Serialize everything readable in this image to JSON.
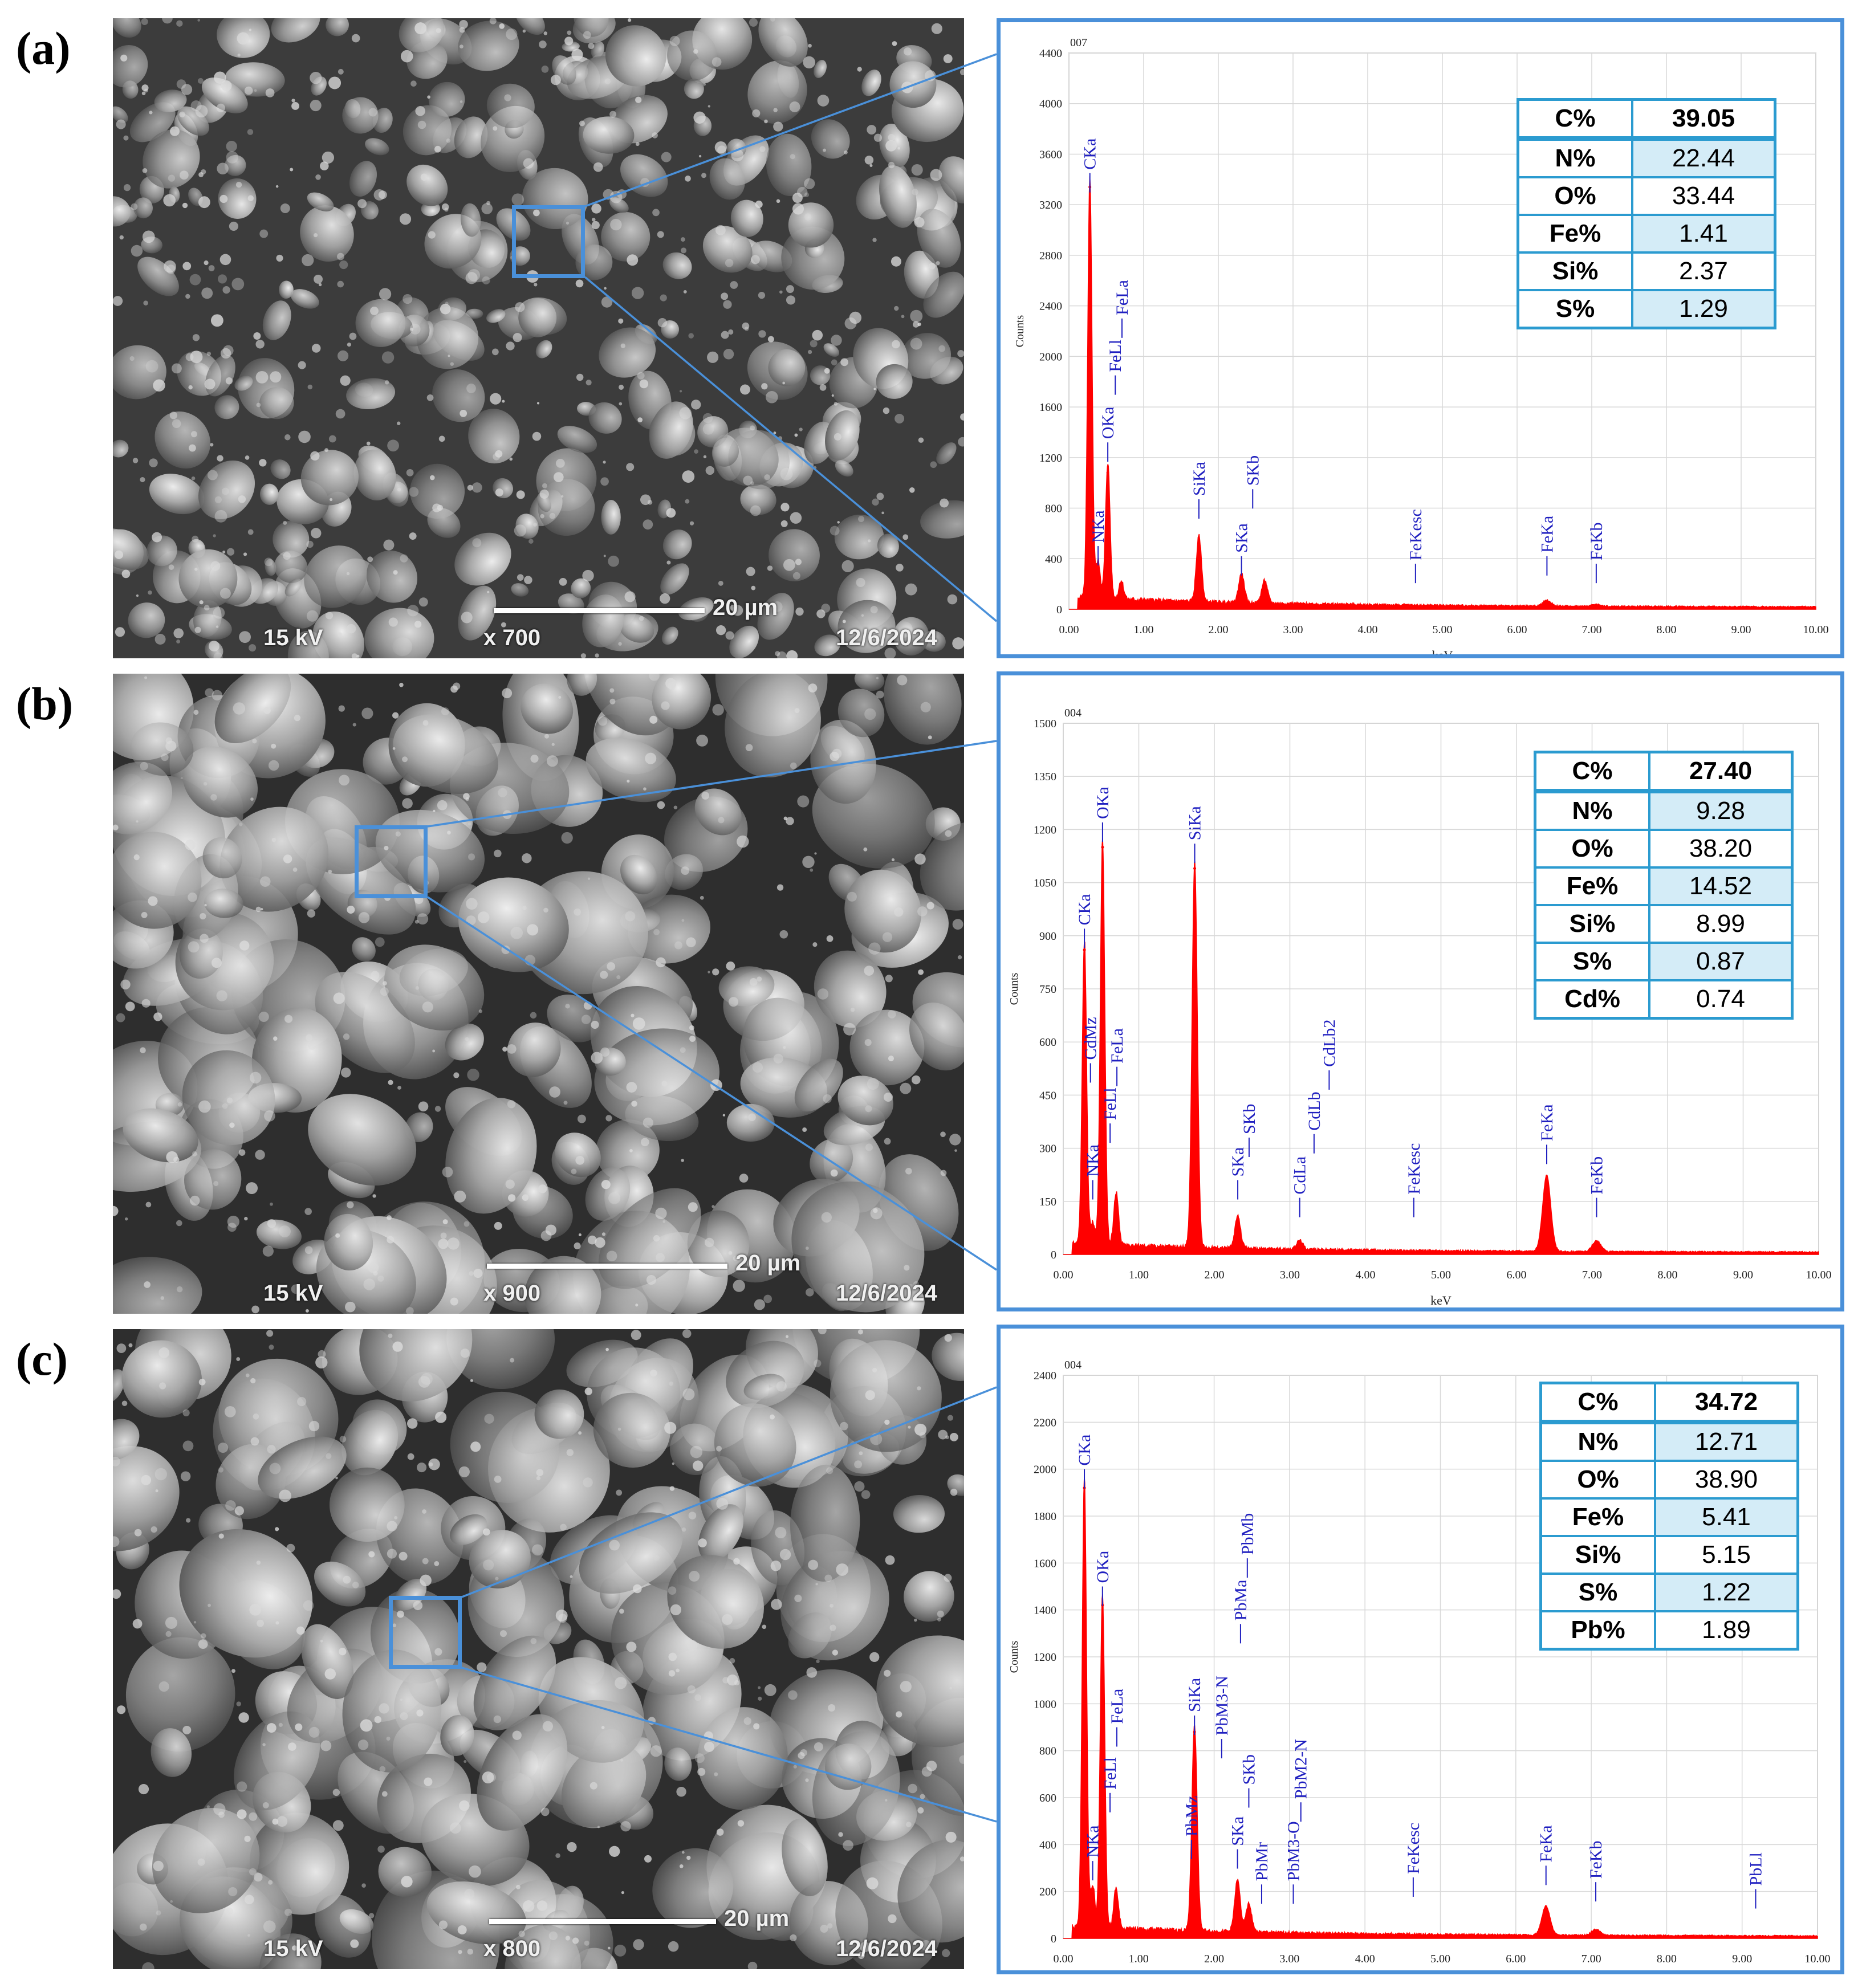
{
  "colors": {
    "accent_blue": "#4a90d9",
    "table_border": "#2b9bd0",
    "table_shade": "#d4ecf7",
    "spectrum_red": "#ff0000",
    "peak_label_blue": "#2020c0"
  },
  "panels": [
    {
      "label": "(a)",
      "sem": {
        "voltage": "15 kV",
        "magnification": "x 700",
        "scale": "20 µm",
        "date": "12/6/2024"
      },
      "composition": [
        {
          "element": "C%",
          "value": "39.05"
        },
        {
          "element": "N%",
          "value": "22.44"
        },
        {
          "element": "O%",
          "value": "33.44"
        },
        {
          "element": "Fe%",
          "value": "1.41"
        },
        {
          "element": "Si%",
          "value": "2.37"
        },
        {
          "element": "S%",
          "value": "1.29"
        }
      ]
    },
    {
      "label": "(b)",
      "sem": {
        "voltage": "15 kV",
        "magnification": "x 900",
        "scale": "20 µm",
        "date": "12/6/2024"
      },
      "composition": [
        {
          "element": "C%",
          "value": "27.40"
        },
        {
          "element": "N%",
          "value": "9.28"
        },
        {
          "element": "O%",
          "value": "38.20"
        },
        {
          "element": "Fe%",
          "value": "14.52"
        },
        {
          "element": "Si%",
          "value": "8.99"
        },
        {
          "element": "S%",
          "value": "0.87"
        },
        {
          "element": "Cd%",
          "value": "0.74"
        }
      ]
    },
    {
      "label": "(c)",
      "sem": {
        "voltage": "15 kV",
        "magnification": "x 800",
        "scale": "20 µm",
        "date": "12/6/2024"
      },
      "composition": [
        {
          "element": "C%",
          "value": "34.72"
        },
        {
          "element": "N%",
          "value": "12.71"
        },
        {
          "element": "O%",
          "value": "38.90"
        },
        {
          "element": "Fe%",
          "value": "5.41"
        },
        {
          "element": "Si%",
          "value": "5.15"
        },
        {
          "element": "S%",
          "value": "1.22"
        },
        {
          "element": "Pb%",
          "value": "1.89"
        }
      ]
    }
  ],
  "chart_data": [
    {
      "type": "line",
      "spectrum_id": "007",
      "xlabel": "keV",
      "ylabel": "Counts",
      "xlim": [
        0,
        10
      ],
      "ylim": [
        0,
        4400
      ],
      "xticks": [
        "0.00",
        "1.00",
        "2.00",
        "3.00",
        "4.00",
        "5.00",
        "6.00",
        "7.00",
        "8.00",
        "9.00",
        "10.00"
      ],
      "yticks": [
        "0",
        "400",
        "800",
        "1200",
        "1600",
        "2000",
        "2400",
        "2800",
        "3200",
        "3600",
        "4000",
        "4400"
      ],
      "grid": true,
      "peaks": [
        {
          "x": 0.28,
          "y": 3340
        },
        {
          "x": 0.39,
          "y": 300
        },
        {
          "x": 0.52,
          "y": 1080
        },
        {
          "x": 0.7,
          "y": 150
        },
        {
          "x": 1.74,
          "y": 520
        },
        {
          "x": 2.31,
          "y": 230
        },
        {
          "x": 2.62,
          "y": 180
        },
        {
          "x": 6.4,
          "y": 45
        },
        {
          "x": 7.06,
          "y": 15
        }
      ],
      "annotations": [
        {
          "label": "CKa",
          "x": 0.28,
          "y": 3450
        },
        {
          "label": "NKa",
          "x": 0.39,
          "y": 500
        },
        {
          "label": "OKa",
          "x": 0.52,
          "y": 1320
        },
        {
          "label": "FeLl",
          "x": 0.62,
          "y": 1850
        },
        {
          "label": "FeLa",
          "x": 0.71,
          "y": 2300
        },
        {
          "label": "SiKa",
          "x": 1.74,
          "y": 870
        },
        {
          "label": "SKa",
          "x": 2.31,
          "y": 420
        },
        {
          "label": "SKb",
          "x": 2.46,
          "y": 950
        },
        {
          "label": "FeKesc",
          "x": 4.64,
          "y": 360
        },
        {
          "label": "FeKa",
          "x": 6.4,
          "y": 420
        },
        {
          "label": "FeKb",
          "x": 7.06,
          "y": 360
        }
      ]
    },
    {
      "type": "line",
      "spectrum_id": "004",
      "xlabel": "keV",
      "ylabel": "Counts",
      "xlim": [
        0,
        10
      ],
      "ylim": [
        0,
        1500
      ],
      "xticks": [
        "0.00",
        "1.00",
        "2.00",
        "3.00",
        "4.00",
        "5.00",
        "6.00",
        "7.00",
        "8.00",
        "9.00",
        "10.00"
      ],
      "yticks": [
        "0",
        "150",
        "300",
        "450",
        "600",
        "750",
        "900",
        "1050",
        "1200",
        "1350",
        "1500"
      ],
      "grid": true,
      "peaks": [
        {
          "x": 0.28,
          "y": 860
        },
        {
          "x": 0.39,
          "y": 60
        },
        {
          "x": 0.52,
          "y": 1150
        },
        {
          "x": 0.7,
          "y": 150
        },
        {
          "x": 1.74,
          "y": 1090
        },
        {
          "x": 2.31,
          "y": 90
        },
        {
          "x": 3.13,
          "y": 25
        },
        {
          "x": 6.4,
          "y": 215
        },
        {
          "x": 7.06,
          "y": 30
        }
      ],
      "annotations": [
        {
          "label": "CKa",
          "x": 0.28,
          "y": 920
        },
        {
          "label": "NKa",
          "x": 0.39,
          "y": 210
        },
        {
          "label": "CdMz",
          "x": 0.36,
          "y": 540
        },
        {
          "label": "OKa",
          "x": 0.52,
          "y": 1220
        },
        {
          "label": "FeLl",
          "x": 0.62,
          "y": 370
        },
        {
          "label": "FeLa",
          "x": 0.71,
          "y": 530
        },
        {
          "label": "SiKa",
          "x": 1.74,
          "y": 1160
        },
        {
          "label": "SKa",
          "x": 2.31,
          "y": 210
        },
        {
          "label": "SKb",
          "x": 2.46,
          "y": 330
        },
        {
          "label": "CdLa",
          "x": 3.13,
          "y": 160
        },
        {
          "label": "CdLb",
          "x": 3.32,
          "y": 340
        },
        {
          "label": "CdLb2",
          "x": 3.52,
          "y": 520
        },
        {
          "label": "FeKesc",
          "x": 4.64,
          "y": 160
        },
        {
          "label": "FeKa",
          "x": 6.4,
          "y": 310
        },
        {
          "label": "FeKb",
          "x": 7.06,
          "y": 160
        }
      ]
    },
    {
      "type": "line",
      "spectrum_id": "004",
      "xlabel": "keV",
      "ylabel": "Counts",
      "xlim": [
        0,
        10
      ],
      "ylim": [
        0,
        2400
      ],
      "xticks": [
        "0.00",
        "1.00",
        "2.00",
        "3.00",
        "4.00",
        "5.00",
        "6.00",
        "7.00",
        "8.00",
        "9.00",
        "10.00"
      ],
      "yticks": [
        "0",
        "200",
        "400",
        "600",
        "800",
        "1000",
        "1200",
        "1400",
        "1600",
        "1800",
        "2000",
        "2200",
        "2400"
      ],
      "grid": true,
      "peaks": [
        {
          "x": 0.28,
          "y": 1920
        },
        {
          "x": 0.39,
          "y": 180
        },
        {
          "x": 0.52,
          "y": 1420
        },
        {
          "x": 0.7,
          "y": 170
        },
        {
          "x": 1.74,
          "y": 880
        },
        {
          "x": 2.31,
          "y": 220
        },
        {
          "x": 2.46,
          "y": 120
        },
        {
          "x": 6.4,
          "y": 125
        },
        {
          "x": 7.06,
          "y": 25
        }
      ],
      "annotations": [
        {
          "label": "CKa",
          "x": 0.28,
          "y": 2000
        },
        {
          "label": "NKa",
          "x": 0.39,
          "y": 330
        },
        {
          "label": "OKa",
          "x": 0.52,
          "y": 1500
        },
        {
          "label": "FeLl",
          "x": 0.62,
          "y": 620
        },
        {
          "label": "FeLa",
          "x": 0.71,
          "y": 900
        },
        {
          "label": "PbMz",
          "x": 1.7,
          "y": 420
        },
        {
          "label": "SiKa",
          "x": 1.74,
          "y": 950
        },
        {
          "label": "SKa",
          "x": 2.31,
          "y": 380
        },
        {
          "label": "SKb",
          "x": 2.46,
          "y": 640
        },
        {
          "label": "PbMr",
          "x": 2.63,
          "y": 230
        },
        {
          "label": "PbM3-N",
          "x": 2.1,
          "y": 850
        },
        {
          "label": "PbMa",
          "x": 2.35,
          "y": 1340
        },
        {
          "label": "PbMb",
          "x": 2.44,
          "y": 1620
        },
        {
          "label": "PbM3-O",
          "x": 3.05,
          "y": 230
        },
        {
          "label": "PbM2-N",
          "x": 3.15,
          "y": 580
        },
        {
          "label": "FeKesc",
          "x": 4.64,
          "y": 260
        },
        {
          "label": "FeKa",
          "x": 6.4,
          "y": 310
        },
        {
          "label": "FeKb",
          "x": 7.06,
          "y": 240
        },
        {
          "label": "PbLl",
          "x": 9.18,
          "y": 210
        }
      ]
    }
  ]
}
